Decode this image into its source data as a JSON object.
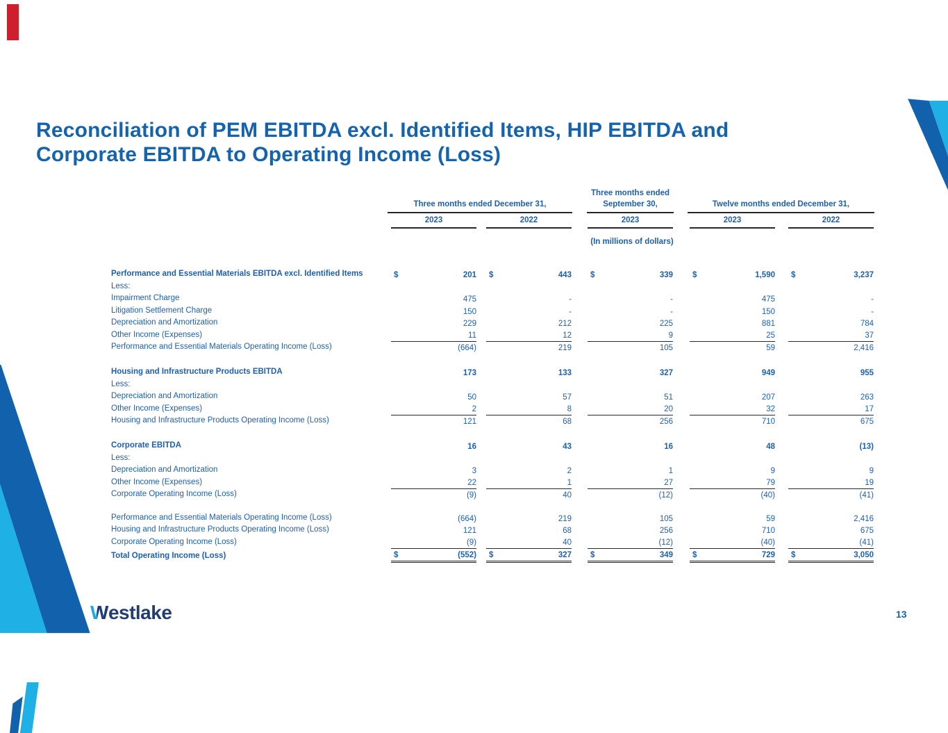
{
  "slide": {
    "title_line1": "Reconciliation of PEM EBITDA excl. Identified Items, HIP EBITDA and",
    "title_line2": "Corporate EBITDA to Operating Income (Loss)",
    "page_number": "13",
    "logo": {
      "w": "W",
      "rest": "estlake"
    }
  },
  "colors": {
    "title_blue": "#1663ad",
    "table_text_blue": "#1e5fad",
    "ribbon_navy": "#1261ad",
    "ribbon_cyan": "#1fb0e6",
    "accent_red": "#ce202c",
    "rule_dark": "#26262e",
    "logo_navy": "#233c73",
    "logo_cyan": "#1fa9e0"
  },
  "table": {
    "currency_symbol": "$",
    "units_note": "(In millions of dollars)",
    "header": {
      "q4_group_label": "Three months ended December 31,",
      "sep_group_line1": "Three months ended",
      "sep_group_line2": "September 30,",
      "ytd_group_label": "Twelve months ended December 31,",
      "years": [
        "2023",
        "2022",
        "2023",
        "2023",
        "2022"
      ]
    },
    "rows": [
      {
        "label": "Performance and Essential Materials EBITDA excl. Identified Items",
        "bold": true,
        "dollar": true,
        "tall": true,
        "values": [
          "201",
          "443",
          "339",
          "1,590",
          "3,237"
        ]
      },
      {
        "label": "Less:",
        "values": [
          "",
          "",
          "",
          "",
          ""
        ]
      },
      {
        "label": "Impairment Charge",
        "values": [
          "475",
          "-",
          "-",
          "475",
          "-"
        ]
      },
      {
        "label": "Litigation Settlement Charge",
        "values": [
          "150",
          "-",
          "-",
          "150",
          "-"
        ]
      },
      {
        "label": "Depreciation and Amortization",
        "values": [
          "229",
          "212",
          "225",
          "881",
          "784"
        ]
      },
      {
        "label": "Other Income (Expenses)",
        "rule_below": true,
        "values": [
          "11",
          "12",
          "9",
          "25",
          "37"
        ]
      },
      {
        "label": "Performance and Essential Materials Operating Income (Loss)",
        "values": [
          "(664)",
          "219",
          "105",
          "59",
          "2,416"
        ]
      },
      {
        "spacer": true
      },
      {
        "label": "Housing and Infrastructure Products EBITDA",
        "bold": true,
        "values": [
          "173",
          "133",
          "327",
          "949",
          "955"
        ]
      },
      {
        "label": "Less:",
        "values": [
          "",
          "",
          "",
          "",
          ""
        ]
      },
      {
        "label": "Depreciation and Amortization",
        "values": [
          "50",
          "57",
          "51",
          "207",
          "263"
        ]
      },
      {
        "label": "Other Income (Expenses)",
        "rule_below": true,
        "values": [
          "2",
          "8",
          "20",
          "32",
          "17"
        ]
      },
      {
        "label": "Housing and Infrastructure Products Operating Income (Loss)",
        "values": [
          "121",
          "68",
          "256",
          "710",
          "675"
        ]
      },
      {
        "spacer": true
      },
      {
        "label": "Corporate EBITDA",
        "bold": true,
        "values": [
          "16",
          "43",
          "16",
          "48",
          "(13)"
        ]
      },
      {
        "label": "Less:",
        "values": [
          "",
          "",
          "",
          "",
          ""
        ]
      },
      {
        "label": "Depreciation and Amortization",
        "values": [
          "3",
          "2",
          "1",
          "9",
          "9"
        ]
      },
      {
        "label": "Other Income (Expenses)",
        "rule_below": true,
        "values": [
          "22",
          "1",
          "27",
          "79",
          "19"
        ]
      },
      {
        "label": "Corporate Operating Income (Loss)",
        "values": [
          "(9)",
          "40",
          "(12)",
          "(40)",
          "(41)"
        ]
      },
      {
        "spacer": true
      },
      {
        "label": "Performance and Essential Materials Operating Income (Loss)",
        "values": [
          "(664)",
          "219",
          "105",
          "59",
          "2,416"
        ]
      },
      {
        "label": "Housing and Infrastructure Products Operating Income (Loss)",
        "values": [
          "121",
          "68",
          "256",
          "710",
          "675"
        ]
      },
      {
        "label": "Corporate Operating Income (Loss)",
        "rule_below": true,
        "values": [
          "(9)",
          "40",
          "(12)",
          "(40)",
          "(41)"
        ]
      },
      {
        "label": "Total Operating Income (Loss)",
        "bold": true,
        "dollar": true,
        "double_rule": true,
        "values": [
          "(552)",
          "327",
          "349",
          "729",
          "3,050"
        ]
      }
    ]
  }
}
